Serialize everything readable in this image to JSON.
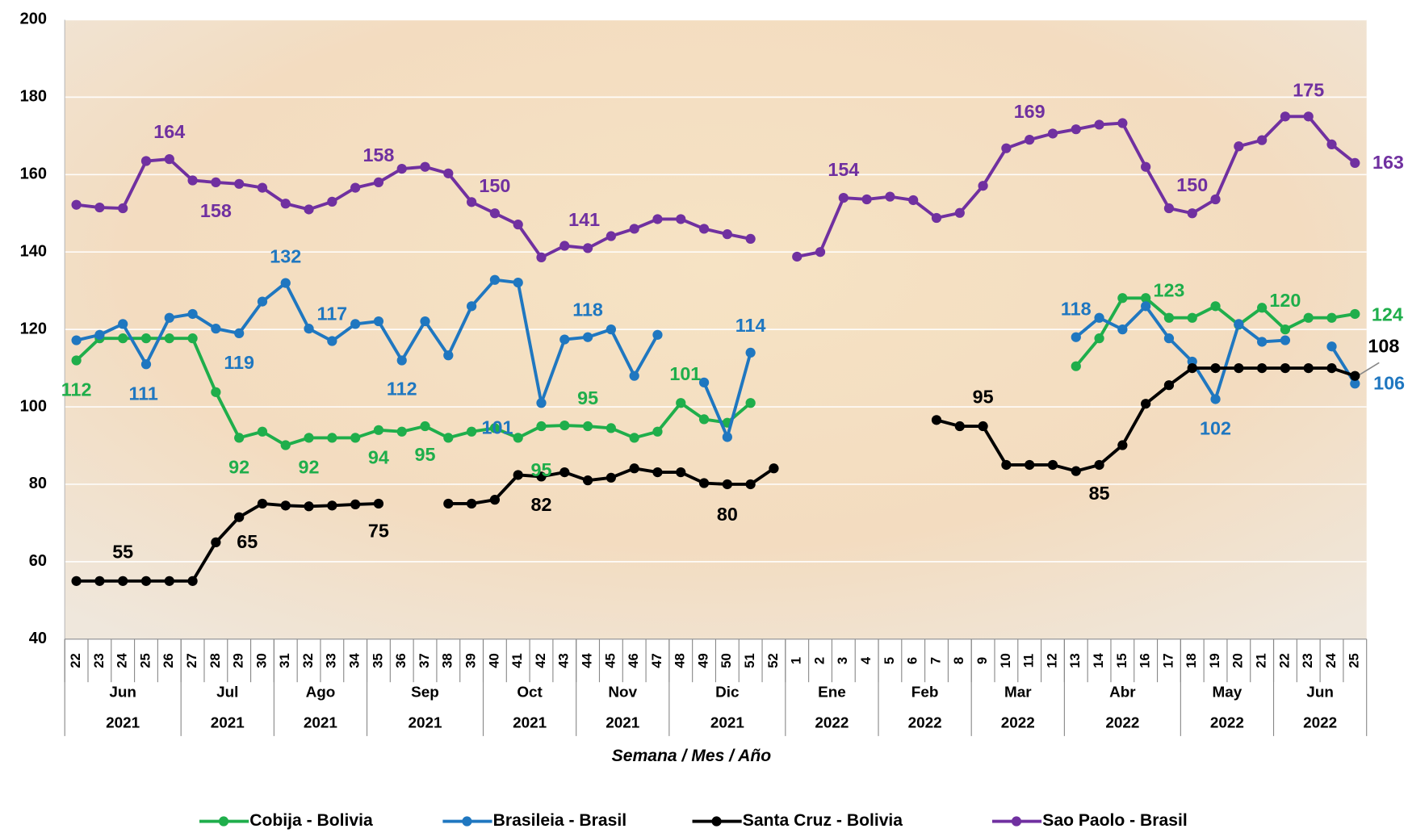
{
  "chart_data": {
    "type": "line",
    "x_label": "Semana / Mes / Año",
    "categories": [
      "22",
      "23",
      "24",
      "25",
      "26",
      "27",
      "28",
      "29",
      "30",
      "31",
      "32",
      "33",
      "34",
      "35",
      "36",
      "37",
      "38",
      "39",
      "40",
      "41",
      "42",
      "43",
      "44",
      "45",
      "46",
      "47",
      "48",
      "49",
      "50",
      "51",
      "52",
      "1",
      "2",
      "3",
      "4",
      "5",
      "6",
      "7",
      "8",
      "9",
      "10",
      "11",
      "12",
      "13",
      "14",
      "15",
      "16",
      "17",
      "18",
      "19",
      "20",
      "21",
      "22",
      "23",
      "24",
      "25"
    ],
    "months": [
      "Jun",
      "Jun",
      "Jun",
      "Jun",
      "Jun",
      "Jul",
      "Jul",
      "Jul",
      "Jul",
      "Ago",
      "Ago",
      "Ago",
      "Ago",
      "Sep",
      "Sep",
      "Sep",
      "Sep",
      "Sep",
      "Oct",
      "Oct",
      "Oct",
      "Oct",
      "Nov",
      "Nov",
      "Nov",
      "Nov",
      "Dic",
      "Dic",
      "Dic",
      "Dic",
      "Dic",
      "Ene",
      "Ene",
      "Ene",
      "Ene",
      "Feb",
      "Feb",
      "Feb",
      "Feb",
      "Mar",
      "Mar",
      "Mar",
      "Mar",
      "Abr",
      "Abr",
      "Abr",
      "Abr",
      "Abr",
      "May",
      "May",
      "May",
      "May",
      "Jun",
      "Jun",
      "Jun",
      "Jun"
    ],
    "years": [
      "2021",
      "2021",
      "2021",
      "2021",
      "2021",
      "2021",
      "2021",
      "2021",
      "2021",
      "2021",
      "2021",
      "2021",
      "2021",
      "2021",
      "2021",
      "2021",
      "2021",
      "2021",
      "2021",
      "2021",
      "2021",
      "2021",
      "2021",
      "2021",
      "2021",
      "2021",
      "2021",
      "2021",
      "2021",
      "2021",
      "2021",
      "2022",
      "2022",
      "2022",
      "2022",
      "2022",
      "2022",
      "2022",
      "2022",
      "2022",
      "2022",
      "2022",
      "2022",
      "2022",
      "2022",
      "2022",
      "2022",
      "2022",
      "2022",
      "2022",
      "2022",
      "2022",
      "2022",
      "2022",
      "2022",
      "2022"
    ],
    "ylim": [
      40,
      200
    ],
    "yticks": [
      40,
      60,
      80,
      100,
      120,
      140,
      160,
      180,
      200
    ],
    "grid": true,
    "series": [
      {
        "name": "Cobija - Bolivia",
        "color": "#1fae4b",
        "values": [
          112,
          117.7,
          117.7,
          117.7,
          117.7,
          117.7,
          103.8,
          92,
          93.6,
          90.1,
          92,
          92,
          92,
          94,
          93.6,
          95,
          92,
          93.6,
          94.5,
          92,
          95,
          95.2,
          95,
          94.5,
          92,
          93.6,
          101,
          96.8,
          95.9,
          101,
          null,
          null,
          null,
          null,
          null,
          null,
          null,
          null,
          null,
          null,
          null,
          null,
          null,
          110.5,
          117.7,
          128.1,
          128.1,
          123,
          123,
          126,
          121.2,
          125.6,
          120,
          123,
          123,
          124
        ],
        "value_labels": [
          "112",
          null,
          null,
          null,
          null,
          null,
          null,
          "92",
          null,
          null,
          "92",
          null,
          null,
          "94",
          null,
          "95",
          null,
          null,
          null,
          null,
          "95",
          null,
          "95",
          null,
          null,
          null,
          "101",
          null,
          null,
          null,
          null,
          null,
          null,
          null,
          null,
          null,
          null,
          null,
          null,
          null,
          null,
          null,
          null,
          null,
          null,
          null,
          null,
          "123",
          null,
          null,
          null,
          null,
          "120",
          null,
          null,
          "124"
        ]
      },
      {
        "name": "Brasileia - Brasil",
        "color": "#1f77c0",
        "values": [
          117.2,
          118.6,
          121.4,
          111,
          123,
          124,
          120.2,
          119,
          127.2,
          132,
          120.2,
          117,
          121.4,
          122.1,
          112,
          122.1,
          113.3,
          126,
          132.8,
          132.1,
          101,
          117.4,
          118,
          120,
          108,
          118.6,
          null,
          106.3,
          92.2,
          114,
          null,
          null,
          null,
          null,
          null,
          null,
          null,
          null,
          null,
          null,
          null,
          null,
          null,
          118,
          123,
          120,
          126,
          117.7,
          111.7,
          102,
          121.4,
          116.8,
          117.2,
          null,
          115.6,
          106
        ],
        "value_labels": [
          null,
          null,
          null,
          "111",
          null,
          null,
          null,
          "119",
          null,
          "132",
          null,
          "117",
          null,
          null,
          "112",
          null,
          null,
          null,
          null,
          null,
          "101",
          null,
          "118",
          null,
          null,
          null,
          null,
          null,
          null,
          "114",
          null,
          null,
          null,
          null,
          null,
          null,
          null,
          null,
          null,
          null,
          null,
          null,
          null,
          "118",
          null,
          null,
          null,
          null,
          null,
          "102",
          null,
          null,
          null,
          null,
          null,
          "106"
        ]
      },
      {
        "name": "Santa Cruz - Bolivia",
        "color": "#000000",
        "values": [
          55,
          55,
          55,
          55,
          55,
          55,
          65,
          71.5,
          75,
          74.5,
          74.3,
          74.5,
          74.8,
          75,
          null,
          null,
          75,
          75,
          76,
          82.4,
          82,
          83.1,
          81,
          81.7,
          84.1,
          83.1,
          83.1,
          80.3,
          80,
          80,
          84.1,
          null,
          null,
          null,
          null,
          null,
          null,
          96.6,
          95,
          95,
          85,
          85,
          85,
          83.4,
          85,
          90.1,
          100.8,
          105.6,
          110,
          110,
          110,
          110,
          110,
          110,
          110,
          108
        ],
        "value_labels": [
          null,
          null,
          "55",
          null,
          null,
          null,
          "65",
          null,
          null,
          null,
          null,
          null,
          null,
          "75",
          null,
          null,
          null,
          null,
          null,
          null,
          "82",
          null,
          null,
          null,
          null,
          null,
          null,
          null,
          "80",
          null,
          null,
          null,
          null,
          null,
          null,
          null,
          null,
          null,
          null,
          "95",
          null,
          null,
          null,
          null,
          "85",
          null,
          null,
          null,
          null,
          null,
          null,
          null,
          null,
          null,
          null,
          "108"
        ]
      },
      {
        "name": "Sao Paolo - Brasil",
        "color": "#7030a0",
        "values": [
          152.2,
          151.5,
          151.3,
          163.5,
          164,
          158.5,
          158,
          157.6,
          156.6,
          152.5,
          151,
          153,
          156.6,
          158,
          161.5,
          162,
          160.3,
          152.9,
          150,
          147.1,
          138.6,
          141.6,
          141,
          144.1,
          146,
          148.5,
          148.5,
          146,
          144.6,
          143.4,
          null,
          138.8,
          140,
          154,
          153.6,
          154.3,
          153.4,
          148.8,
          150.1,
          157.1,
          166.8,
          169,
          170.6,
          171.7,
          172.9,
          173.3,
          162,
          151.3,
          150,
          153.6,
          167.3,
          168.9,
          175,
          175,
          167.8,
          163
        ],
        "value_labels": [
          null,
          null,
          null,
          null,
          "164",
          null,
          "158",
          null,
          null,
          null,
          null,
          null,
          null,
          "158",
          null,
          null,
          null,
          null,
          "150",
          null,
          null,
          null,
          "141",
          null,
          null,
          null,
          null,
          null,
          null,
          null,
          null,
          null,
          null,
          "154",
          null,
          null,
          null,
          null,
          null,
          null,
          null,
          "169",
          null,
          null,
          null,
          null,
          null,
          null,
          "150",
          null,
          null,
          null,
          null,
          "175",
          null,
          "163"
        ]
      }
    ]
  }
}
